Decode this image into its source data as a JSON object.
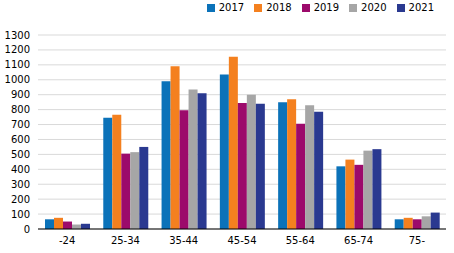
{
  "chart_data": {
    "type": "bar",
    "categories": [
      "-24",
      "25-34",
      "35-44",
      "45-54",
      "55-64",
      "65-74",
      "75-"
    ],
    "series": [
      {
        "name": "2017",
        "color": "#0b72b9",
        "values": [
          65,
          745,
          990,
          1035,
          850,
          420,
          65
        ]
      },
      {
        "name": "2018",
        "color": "#f4801f",
        "values": [
          75,
          765,
          1090,
          1155,
          870,
          465,
          75
        ]
      },
      {
        "name": "2019",
        "color": "#9c0a6b",
        "values": [
          50,
          505,
          795,
          845,
          705,
          430,
          65
        ]
      },
      {
        "name": "2020",
        "color": "#a6a6a6",
        "values": [
          30,
          515,
          935,
          900,
          830,
          525,
          85
        ]
      },
      {
        "name": "2021",
        "color": "#2a3990",
        "values": [
          35,
          550,
          910,
          840,
          785,
          535,
          110
        ]
      }
    ],
    "ylim": [
      0,
      1300
    ],
    "yticks": [
      0,
      100,
      200,
      300,
      400,
      500,
      600,
      700,
      800,
      900,
      1000,
      1100,
      1200,
      1300
    ],
    "grid": true,
    "legend": "top-right"
  }
}
